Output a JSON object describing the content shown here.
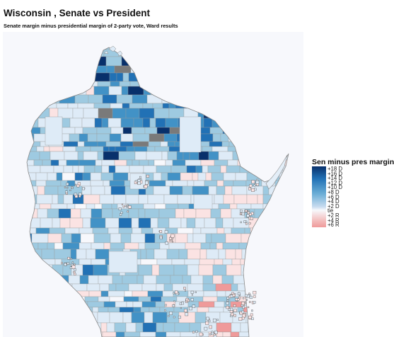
{
  "title": "Wisconsin , Senate vs President",
  "subtitle": "Senate margin minus presidential margin of 2-party vote, Ward results",
  "legend": {
    "title": "Sen minus pres margin",
    "labels": [
      "+18 D",
      "+16 D",
      "+14 D",
      "+12 D",
      "+10 D",
      "+8 D",
      "+6 D",
      "+4 D",
      "+2 D",
      "tie",
      "+2 R",
      "+4 R",
      "+6 R"
    ]
  },
  "colors": {
    "d18": "#08306b",
    "d14": "#2171b5",
    "d10": "#4292c6",
    "d6": "#9ecae1",
    "d2": "#deebf7",
    "tie": "#f7f8fc",
    "r2": "#fbe3e3",
    "r6": "#ef9a9a",
    "missing": "#7a7a7a",
    "border": "#9a9a9a",
    "background": "#f7f8fc"
  }
}
